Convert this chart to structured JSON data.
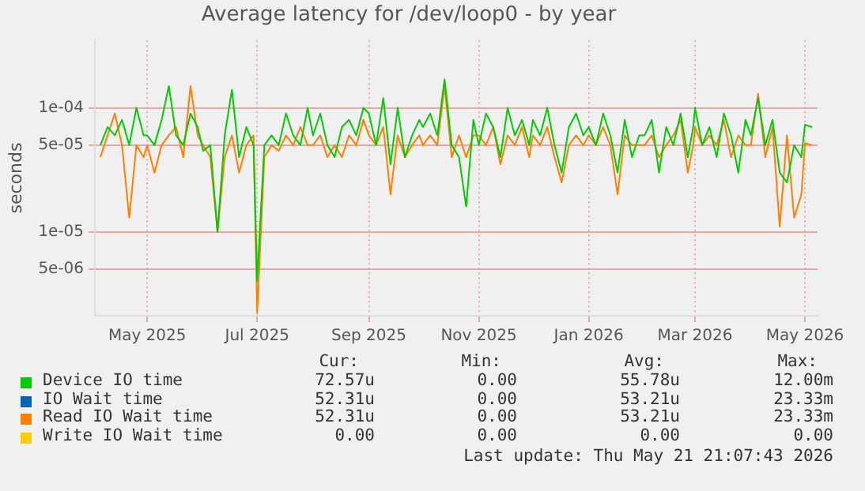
{
  "chart_data": {
    "type": "line",
    "title": "Average latency for /dev/loop0 - by year",
    "ylabel": "seconds",
    "log": "y",
    "grid": true,
    "legend": "bottom",
    "marker": "none",
    "line_style": "solid",
    "x": [
      "2025-04-05",
      "2025-04-09",
      "2025-04-13",
      "2025-04-17",
      "2025-04-21",
      "2025-04-25",
      "2025-04-29",
      "2025-05-01",
      "2025-05-05",
      "2025-05-09",
      "2025-05-13",
      "2025-05-17",
      "2025-05-21",
      "2025-05-25",
      "2025-05-29",
      "2025-06-01",
      "2025-06-05",
      "2025-06-09",
      "2025-06-13",
      "2025-06-17",
      "2025-06-21",
      "2025-06-25",
      "2025-06-29",
      "2025-07-01",
      "2025-07-05",
      "2025-07-09",
      "2025-07-13",
      "2025-07-17",
      "2025-07-21",
      "2025-07-25",
      "2025-07-29",
      "2025-08-01",
      "2025-08-05",
      "2025-08-09",
      "2025-08-13",
      "2025-08-17",
      "2025-08-21",
      "2025-08-25",
      "2025-08-29",
      "2025-09-01",
      "2025-09-05",
      "2025-09-09",
      "2025-09-13",
      "2025-09-17",
      "2025-09-21",
      "2025-09-25",
      "2025-09-29",
      "2025-10-01",
      "2025-10-05",
      "2025-10-09",
      "2025-10-13",
      "2025-10-17",
      "2025-10-21",
      "2025-10-25",
      "2025-10-29",
      "2025-11-01",
      "2025-11-05",
      "2025-11-09",
      "2025-11-13",
      "2025-11-17",
      "2025-11-21",
      "2025-11-25",
      "2025-11-29",
      "2025-12-01",
      "2025-12-05",
      "2025-12-09",
      "2025-12-13",
      "2025-12-17",
      "2025-12-21",
      "2025-12-25",
      "2025-12-29",
      "2026-01-01",
      "2026-01-05",
      "2026-01-09",
      "2026-01-13",
      "2026-01-17",
      "2026-01-21",
      "2026-01-25",
      "2026-01-29",
      "2026-02-01",
      "2026-02-05",
      "2026-02-09",
      "2026-02-13",
      "2026-02-17",
      "2026-02-21",
      "2026-02-25",
      "2026-02-28",
      "2026-03-01",
      "2026-03-05",
      "2026-03-09",
      "2026-03-13",
      "2026-03-17",
      "2026-03-21",
      "2026-03-25",
      "2026-03-29",
      "2026-04-01",
      "2026-04-05",
      "2026-04-09",
      "2026-04-13",
      "2026-04-17",
      "2026-04-21",
      "2026-04-25",
      "2026-04-29",
      "2026-05-01",
      "2026-05-05"
    ],
    "xlim": [
      "2025-04-02",
      "2026-05-08"
    ],
    "xticks": [
      {
        "value": "2025-05-01",
        "label": "May 2025"
      },
      {
        "value": "2025-07-01",
        "label": "Jul 2025"
      },
      {
        "value": "2025-09-01",
        "label": "Sep 2025"
      },
      {
        "value": "2025-11-01",
        "label": "Nov 2025"
      },
      {
        "value": "2026-01-01",
        "label": "Jan 2026"
      },
      {
        "value": "2026-03-01",
        "label": "Mar 2026"
      },
      {
        "value": "2026-05-01",
        "label": "May 2026"
      }
    ],
    "ylim": [
      2.1e-06,
      0.00035
    ],
    "yticks": [
      {
        "value": 5e-06,
        "label": "5e-06"
      },
      {
        "value": 1e-05,
        "label": "1e-05"
      },
      {
        "value": 5e-05,
        "label": "5e-05"
      },
      {
        "value": 0.0001,
        "label": "1e-04"
      }
    ],
    "series": [
      {
        "name": "Device IO time",
        "color": "#00cc00",
        "values": [
          5e-05,
          7e-05,
          6e-05,
          8e-05,
          5e-05,
          0.0001,
          6e-05,
          6e-05,
          5e-05,
          8e-05,
          0.00015,
          6e-05,
          5e-05,
          9e-05,
          7e-05,
          4.5e-05,
          5e-05,
          1e-05,
          6e-05,
          0.00014,
          4e-05,
          7e-05,
          5e-05,
          4e-06,
          5e-05,
          6e-05,
          5e-05,
          9e-05,
          6e-05,
          5e-05,
          0.0001,
          6e-05,
          9e-05,
          5e-05,
          4e-05,
          7e-05,
          8e-05,
          6e-05,
          0.0001,
          9e-05,
          5e-05,
          0.00012,
          3.5e-05,
          0.0001,
          4e-05,
          6e-05,
          8e-05,
          7e-05,
          9e-05,
          6e-05,
          0.00017,
          5e-05,
          4e-05,
          1.6e-05,
          8e-05,
          5e-05,
          9e-05,
          7e-05,
          4e-05,
          0.0001,
          6e-05,
          8e-05,
          5e-05,
          8e-05,
          6e-05,
          0.0001,
          5e-05,
          3e-05,
          7e-05,
          9e-05,
          6e-05,
          7e-05,
          5e-05,
          9e-05,
          6e-05,
          3e-05,
          8e-05,
          4e-05,
          6e-05,
          6e-05,
          8e-05,
          3e-05,
          7e-05,
          5e-05,
          9e-05,
          4e-05,
          7e-05,
          0.0001,
          5e-05,
          7e-05,
          4e-05,
          9e-05,
          6e-05,
          3e-05,
          8e-05,
          6e-05,
          0.00012,
          5e-05,
          8e-05,
          3e-05,
          2.5e-05,
          5e-05,
          4e-05,
          7.3e-05,
          7e-05
        ]
      },
      {
        "name": "IO Wait time",
        "color": "#0066b3",
        "values": [
          null,
          null,
          null,
          null,
          null,
          null,
          null,
          null,
          null,
          null,
          null,
          null,
          null,
          null,
          null,
          null,
          null,
          null,
          null,
          null,
          null,
          null,
          null,
          null,
          null,
          null,
          null,
          null,
          null,
          null,
          null,
          null,
          null,
          null,
          null,
          null,
          null,
          null,
          null,
          null,
          null,
          null,
          null,
          null,
          null,
          null,
          null,
          null,
          null,
          null,
          null,
          null,
          null,
          null,
          null,
          null,
          null,
          null,
          null,
          null,
          null,
          null,
          null,
          null,
          null,
          null,
          null,
          null,
          null,
          null,
          null,
          null,
          null,
          null,
          null,
          null,
          null,
          null,
          null,
          null,
          null,
          null,
          null,
          null,
          null,
          null,
          null,
          null,
          null,
          null,
          null,
          null,
          null,
          null,
          null,
          null,
          null,
          null,
          null,
          null,
          null,
          null,
          null,
          null,
          null
        ]
      },
      {
        "name": "Read IO Wait time",
        "color": "#ff8000",
        "values": [
          4e-05,
          6e-05,
          9e-05,
          5e-05,
          1.3e-05,
          5e-05,
          4e-05,
          5e-05,
          3e-05,
          5e-05,
          6e-05,
          7e-05,
          4e-05,
          0.00015,
          6e-05,
          5e-05,
          4e-05,
          1e-05,
          4e-05,
          6e-05,
          3e-05,
          5e-05,
          6e-05,
          2.2e-06,
          4e-05,
          5e-05,
          4.5e-05,
          6e-05,
          5e-05,
          7e-05,
          5e-05,
          5e-05,
          6e-05,
          4e-05,
          5e-05,
          4e-05,
          6e-05,
          5e-05,
          8e-05,
          6e-05,
          5e-05,
          7e-05,
          2e-05,
          6e-05,
          4e-05,
          5e-05,
          6e-05,
          5e-05,
          6e-05,
          5e-05,
          0.00015,
          4e-05,
          6e-05,
          4e-05,
          6e-05,
          6e-05,
          5e-05,
          7e-05,
          3.5e-05,
          6e-05,
          5e-05,
          7e-05,
          4e-05,
          6e-05,
          5e-05,
          7e-05,
          4e-05,
          2.5e-05,
          5e-05,
          6e-05,
          5e-05,
          6e-05,
          5e-05,
          7e-05,
          5e-05,
          2e-05,
          6e-05,
          5e-05,
          5e-05,
          5e-05,
          6e-05,
          4e-05,
          5e-05,
          6e-05,
          8e-05,
          3e-05,
          5e-05,
          7e-05,
          5e-05,
          6e-05,
          5e-05,
          8e-05,
          4e-05,
          6e-05,
          5e-05,
          5e-05,
          0.00013,
          4e-05,
          7e-05,
          1.1e-05,
          6e-05,
          1.3e-05,
          2e-05,
          5.2e-05,
          5e-05
        ]
      },
      {
        "name": "Write IO Wait time",
        "color": "#ffcc00",
        "values": [
          null,
          null,
          null,
          null,
          null,
          null,
          null,
          null,
          null,
          null,
          null,
          null,
          null,
          null,
          null,
          null,
          null,
          null,
          null,
          null,
          null,
          null,
          null,
          null,
          null,
          null,
          null,
          null,
          null,
          null,
          null,
          null,
          null,
          null,
          null,
          null,
          null,
          null,
          null,
          null,
          null,
          null,
          null,
          null,
          null,
          null,
          null,
          null,
          null,
          null,
          null,
          null,
          null,
          null,
          null,
          null,
          null,
          null,
          null,
          null,
          null,
          null,
          null,
          null,
          null,
          null,
          null,
          null,
          null,
          null,
          null,
          null,
          null,
          null,
          null,
          null,
          null,
          null,
          null,
          null,
          null,
          null,
          null,
          null,
          null,
          null,
          null,
          null,
          null,
          null,
          null,
          null,
          null,
          null,
          null,
          null,
          null,
          null,
          null,
          null,
          null,
          null,
          null,
          null,
          null
        ]
      }
    ],
    "annotations": [
      "Cur:",
      "Min:",
      "Avg:",
      "Max:",
      "72.57u",
      "0.00",
      "55.78u",
      "12.00m",
      "52.31u",
      "0.00",
      "53.21u",
      "23.33m",
      "52.31u",
      "0.00",
      "53.21u",
      "23.33m",
      "0.00",
      "0.00",
      "0.00",
      "0.00",
      "Last update: Thu May 21 21:07:43 2026"
    ]
  }
}
